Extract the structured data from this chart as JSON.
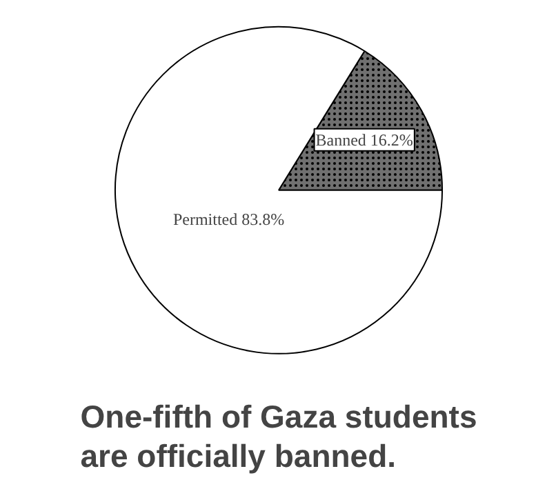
{
  "chart_data": {
    "type": "pie",
    "title": "One-fifth of Gaza students\nare officially banned.",
    "categories": [
      "Banned",
      "Permitted"
    ],
    "values": [
      16.2,
      83.8
    ],
    "colors": [
      "#707070",
      "#ffffff"
    ],
    "value_labels": [
      "16.2%",
      "83.8%"
    ]
  }
}
